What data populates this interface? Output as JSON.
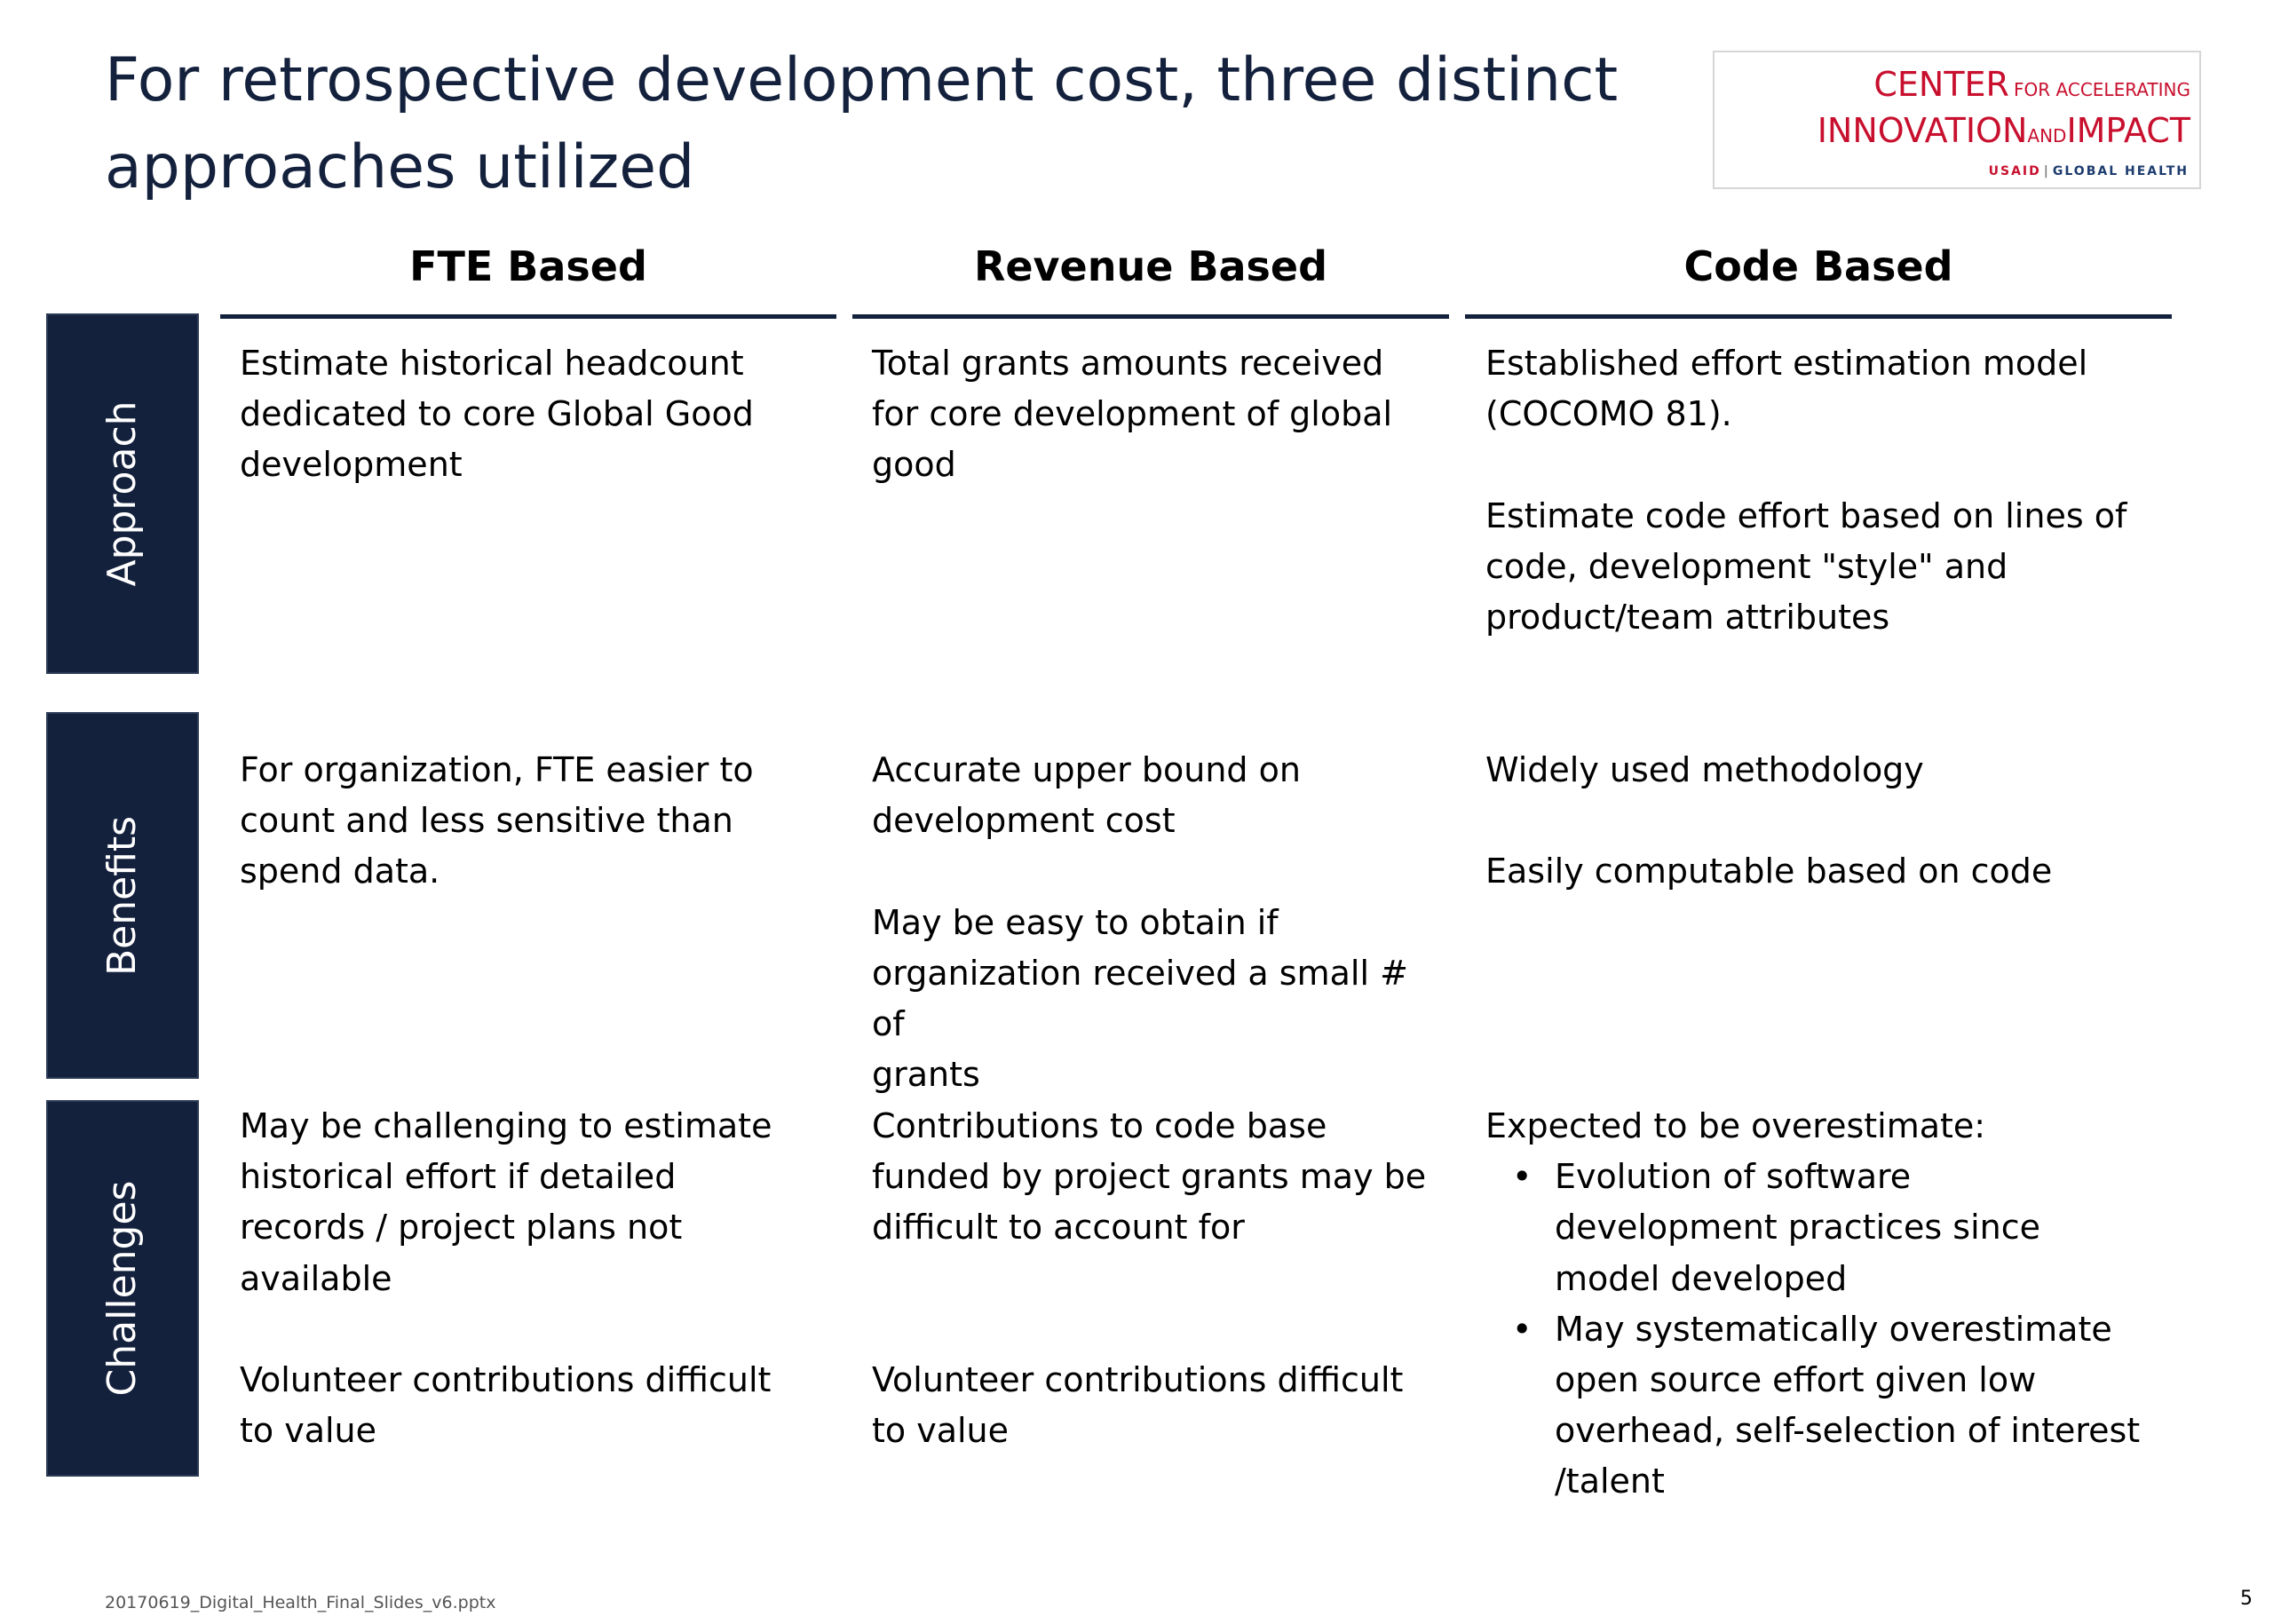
{
  "slide": {
    "title_line1": "For retrospective development cost, three distinct",
    "title_line2": "approaches utilized",
    "footer": "20170619_Digital_Health_Final_Slides_v6.pptx",
    "page_number": "5"
  },
  "logo": {
    "word_center": "CENTER",
    "word_for_accelerating": "FOR ACCELERATING",
    "word_innovation": "INNOVATION",
    "word_and": "AND",
    "word_impact": "IMPACT",
    "word_usaid": "USAID",
    "separator": "|",
    "word_global_health": "GLOBAL HEALTH",
    "brand_red": "#c8102e",
    "brand_blue": "#1c3b6e"
  },
  "colors": {
    "navy": "#14213d",
    "text": "#000000",
    "background": "#ffffff"
  },
  "columns": {
    "fte": "FTE Based",
    "revenue": "Revenue Based",
    "code": "Code Based"
  },
  "rows": {
    "approach": {
      "label": "Approach",
      "fte": [
        "Estimate historical headcount",
        "dedicated to core Global Good",
        "development"
      ],
      "revenue": [
        "Total grants amounts received",
        "for core development of global",
        "good"
      ],
      "code_p1": [
        "Established effort estimation model",
        "(COCOMO 81)."
      ],
      "code_p2": [
        "Estimate code effort based on lines of",
        "code, development \"style\" and",
        "product/team attributes"
      ]
    },
    "benefits": {
      "label": "Benefits",
      "fte": [
        "For organization, FTE easier to",
        "count and less sensitive than",
        "spend data."
      ],
      "revenue_p1": [
        "Accurate upper bound on",
        "development cost"
      ],
      "revenue_p2": [
        "May be easy to obtain if",
        "organization received a small # of",
        "grants"
      ],
      "code_p1": "Widely used methodology",
      "code_p2": "Easily computable based on code"
    },
    "challenges": {
      "label": "Challenges",
      "fte_p1": [
        "May be challenging to estimate",
        "historical effort if detailed",
        "records / project plans not",
        "available"
      ],
      "fte_p2": [
        "Volunteer contributions difficult",
        "to value"
      ],
      "revenue_p1": [
        "Contributions to code base",
        "funded by project grants may be",
        "difficult to account for"
      ],
      "revenue_p2": [
        "Volunteer contributions difficult",
        "to value"
      ],
      "code_intro": "Expected to be overestimate:",
      "code_bullet1": [
        "Evolution of software",
        "development practices since",
        "model developed"
      ],
      "code_bullet2": [
        "May systematically overestimate",
        "open source effort given low",
        "overhead, self-selection of interest",
        "/talent"
      ]
    }
  }
}
